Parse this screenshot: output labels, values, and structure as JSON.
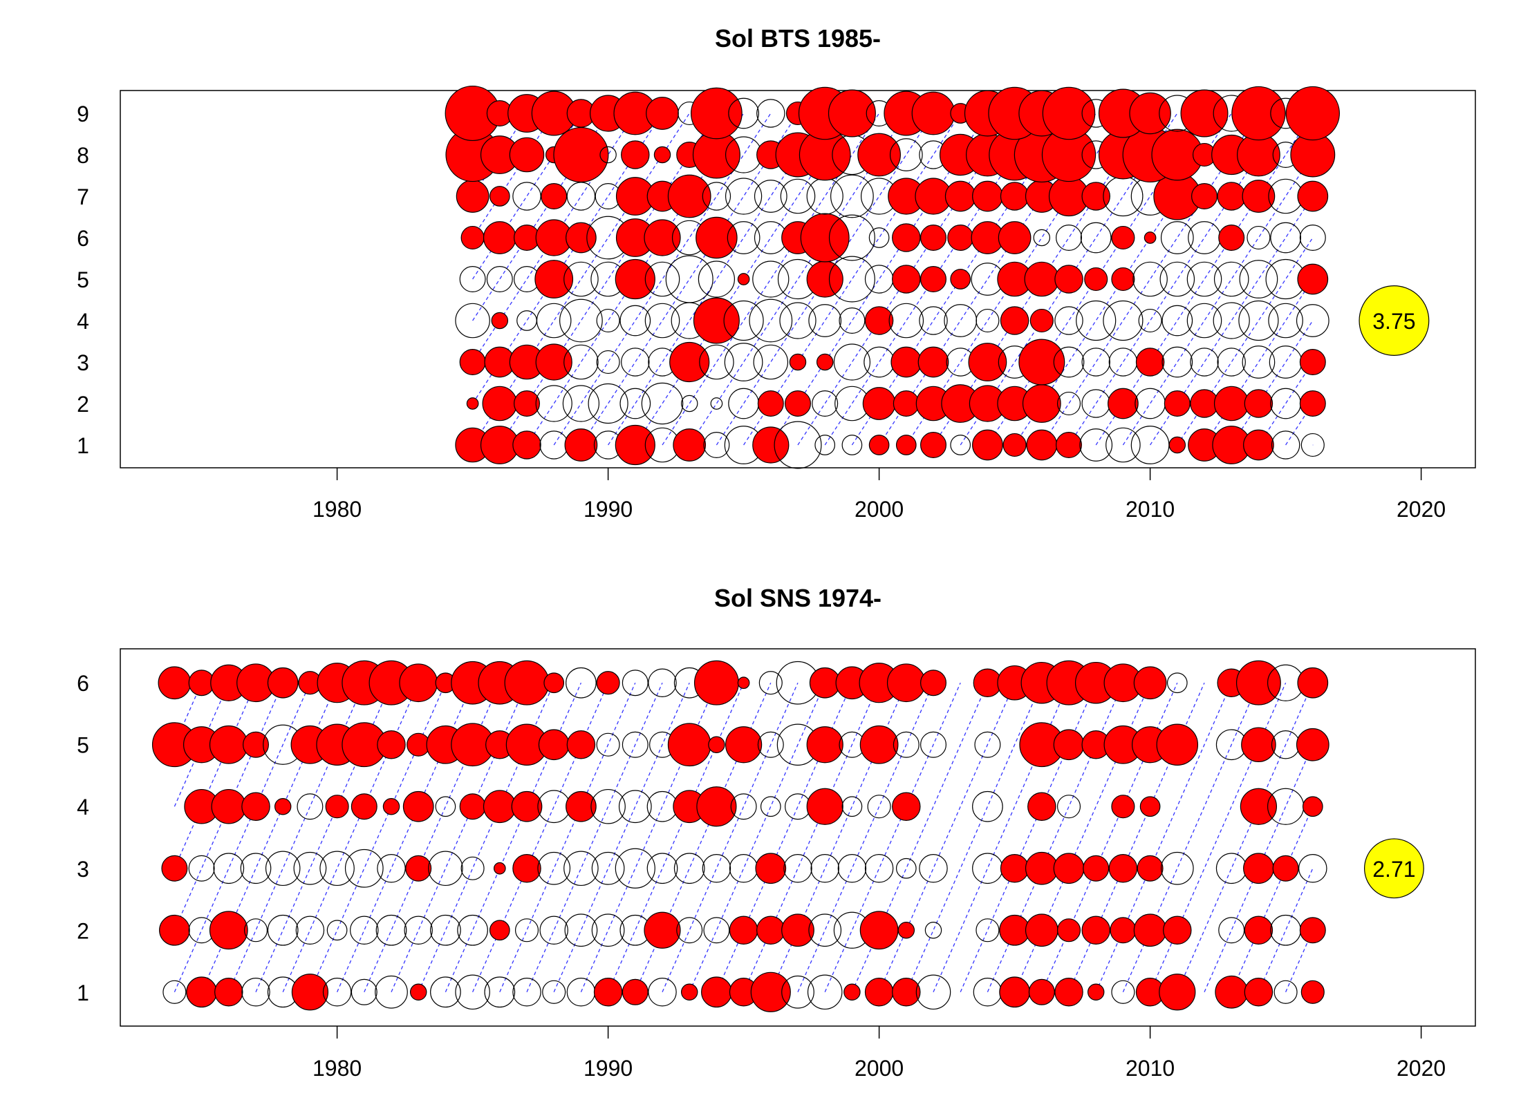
{
  "chart_data": [
    {
      "type": "scatter",
      "title": "Sol BTS 1985-",
      "xlabel": "",
      "ylabel": "",
      "xlim": [
        1972,
        2022
      ],
      "xticks": [
        1980,
        1990,
        2000,
        2010,
        2020
      ],
      "ages": [
        1,
        2,
        3,
        4,
        5,
        6,
        7,
        8,
        9
      ],
      "years": [
        1985,
        1986,
        1987,
        1988,
        1989,
        1990,
        1991,
        1992,
        1993,
        1994,
        1995,
        1996,
        1997,
        1998,
        1999,
        2000,
        2001,
        2002,
        2003,
        2004,
        2005,
        2006,
        2007,
        2008,
        2009,
        2010,
        2011,
        2012,
        2013,
        2014,
        2015,
        2016
      ],
      "grid": false,
      "positive_color": "#ff0000",
      "negative_color": "none",
      "cohort_line_color": "#3333ff",
      "max_marker": {
        "label": "3.75",
        "value": 3.75,
        "x": 2019,
        "y": 4,
        "color": "#ffff00"
      },
      "residuals": [
        [
          0.9,
          1.1,
          0.6,
          -0.6,
          0.8,
          -0.6,
          1.2,
          -0.9,
          0.8,
          -0.5,
          -1.1,
          1.0,
          -1.7,
          -0.3,
          -0.3,
          0.3,
          0.3,
          0.5,
          -0.3,
          0.7,
          0.4,
          0.7,
          0.5,
          -0.8,
          -0.9,
          -1.1,
          0.2,
          0.8,
          1.1,
          0.7,
          -0.6,
          -0.4
        ],
        [
          0.1,
          0.9,
          0.5,
          -1.0,
          -1.0,
          -1.2,
          -0.7,
          -1.3,
          -0.2,
          -0.1,
          -0.7,
          0.5,
          0.5,
          -0.5,
          -0.9,
          0.8,
          0.5,
          0.9,
          1.1,
          1.0,
          0.9,
          1.1,
          -0.4,
          -0.6,
          0.7,
          -0.7,
          0.5,
          0.6,
          0.9,
          0.6,
          -0.7,
          0.5
        ],
        [
          0.5,
          0.7,
          0.9,
          1.0,
          -0.9,
          -0.4,
          -0.6,
          -0.6,
          1.2,
          -0.9,
          -1.1,
          -0.9,
          0.2,
          0.2,
          -1.0,
          -0.7,
          0.7,
          0.7,
          -0.6,
          1.1,
          -0.8,
          1.6,
          -0.7,
          -0.6,
          -0.6,
          0.6,
          -0.7,
          -0.6,
          -0.6,
          -0.8,
          -0.8,
          0.5
        ],
        [
          -0.9,
          0.2,
          -0.3,
          -0.9,
          -1.4,
          -0.4,
          -0.7,
          -0.9,
          -1.0,
          1.6,
          -1.2,
          -1.4,
          -1.0,
          -0.8,
          -0.5,
          0.6,
          -0.9,
          -0.6,
          -0.8,
          -0.4,
          0.6,
          0.4,
          -0.6,
          -1.2,
          -1.2,
          -0.4,
          -0.7,
          -0.9,
          -1.0,
          -1.2,
          -0.9,
          -0.8
        ],
        [
          -0.5,
          -0.5,
          -0.5,
          1.1,
          -0.9,
          -0.9,
          1.2,
          -0.9,
          -1.7,
          -1.0,
          0.1,
          -1.0,
          -1.2,
          1.0,
          -1.6,
          -0.6,
          0.6,
          0.5,
          0.3,
          -0.8,
          0.9,
          0.9,
          0.6,
          0.4,
          0.4,
          -0.9,
          -0.9,
          -0.9,
          -0.9,
          -1.1,
          -1.2,
          0.7
        ],
        [
          0.4,
          0.8,
          0.5,
          1.0,
          0.7,
          -1.4,
          1.1,
          1.0,
          -0.9,
          1.3,
          -0.8,
          -0.8,
          0.8,
          1.8,
          -1.6,
          -0.3,
          0.6,
          0.5,
          0.5,
          0.8,
          0.8,
          -0.2,
          -0.5,
          -0.7,
          0.4,
          0.1,
          -0.8,
          -0.8,
          0.5,
          -0.4,
          -0.7,
          -0.5
        ],
        [
          0.8,
          0.3,
          -0.6,
          0.5,
          -0.6,
          -0.5,
          1.1,
          0.7,
          1.4,
          -0.6,
          -1.0,
          -0.8,
          -0.9,
          -1.0,
          -1.4,
          -1.0,
          1.0,
          1.0,
          0.7,
          0.7,
          0.6,
          0.8,
          1.2,
          0.6,
          -1.2,
          -1.1,
          1.7,
          0.5,
          0.6,
          0.8,
          -0.9,
          0.7
        ],
        [
          2.2,
          1.1,
          0.9,
          0.2,
          2.3,
          -0.2,
          0.6,
          0.2,
          0.5,
          1.7,
          -1.0,
          0.6,
          1.5,
          2.0,
          -1.2,
          1.4,
          -0.8,
          -0.6,
          1.3,
          1.4,
          2.0,
          2.3,
          2.2,
          -0.6,
          1.8,
          2.3,
          2.0,
          0.4,
          1.2,
          1.4,
          -0.5,
          1.5
        ],
        [
          2.3,
          0.5,
          1.1,
          1.5,
          0.6,
          1.0,
          1.4,
          0.8,
          -0.4,
          2.0,
          -0.7,
          -0.6,
          0.4,
          2.1,
          1.7,
          -0.5,
          1.5,
          1.4,
          0.3,
          1.6,
          2.1,
          1.6,
          2.1,
          -0.6,
          1.8,
          1.3,
          -1.0,
          1.7,
          -1.0,
          2.2,
          -0.7,
          2.2
        ]
      ]
    },
    {
      "type": "scatter",
      "title": "Sol SNS 1974-",
      "xlabel": "",
      "ylabel": "",
      "xlim": [
        1972,
        2022
      ],
      "xticks": [
        1980,
        1990,
        2000,
        2010,
        2020
      ],
      "ages": [
        1,
        2,
        3,
        4,
        5,
        6
      ],
      "years": [
        1974,
        1975,
        1976,
        1977,
        1978,
        1979,
        1980,
        1981,
        1982,
        1983,
        1984,
        1985,
        1986,
        1987,
        1988,
        1989,
        1990,
        1991,
        1992,
        1993,
        1994,
        1995,
        1996,
        1997,
        1998,
        1999,
        2000,
        2001,
        2002,
        2003,
        2004,
        2005,
        2006,
        2007,
        2008,
        2009,
        2010,
        2011,
        2012,
        2013,
        2014,
        2015,
        2016
      ],
      "grid": false,
      "positive_color": "#ff0000",
      "negative_color": "none",
      "cohort_line_color": "#3333ff",
      "max_marker": {
        "label": "2.71",
        "value": 2.71,
        "x": 2019,
        "y": 3,
        "color": "#ffff00"
      },
      "residuals": [
        [
          -0.4,
          0.7,
          0.6,
          -0.6,
          -0.7,
          1.0,
          -0.6,
          -0.5,
          -0.8,
          0.2,
          -0.7,
          -0.9,
          -0.7,
          -0.6,
          -0.4,
          -0.6,
          0.6,
          0.5,
          -0.6,
          0.2,
          0.7,
          0.6,
          1.2,
          -0.8,
          -0.9,
          0.2,
          0.6,
          0.6,
          -0.9,
          null,
          -0.6,
          0.7,
          0.5,
          0.6,
          0.2,
          -0.4,
          0.6,
          1.0,
          null,
          0.8,
          0.6,
          -0.4,
          0.4
        ],
        [
          0.7,
          -0.5,
          1.1,
          -0.4,
          -0.7,
          -0.6,
          -0.3,
          -0.6,
          -0.7,
          -0.6,
          -0.7,
          -0.7,
          0.3,
          -0.4,
          -0.6,
          -0.8,
          -0.8,
          -0.7,
          1.0,
          -0.5,
          -0.5,
          0.6,
          0.6,
          0.8,
          -0.8,
          -1.0,
          1.1,
          0.2,
          -0.2,
          null,
          -0.4,
          0.7,
          0.8,
          0.4,
          0.6,
          0.5,
          0.8,
          0.6,
          null,
          -0.5,
          0.6,
          -0.7,
          0.5
        ],
        [
          0.5,
          -0.5,
          -0.7,
          -0.7,
          -0.9,
          -0.8,
          -0.9,
          -1.1,
          -0.6,
          0.5,
          -0.9,
          -0.4,
          0.1,
          0.6,
          -0.8,
          -0.9,
          -0.8,
          -1.2,
          -0.7,
          -0.7,
          -0.6,
          -0.6,
          0.7,
          -0.6,
          -0.6,
          -0.6,
          -0.6,
          -0.3,
          -0.6,
          null,
          -0.7,
          0.6,
          0.8,
          0.7,
          0.5,
          0.6,
          0.5,
          -0.8,
          null,
          -0.7,
          0.7,
          0.5,
          -0.6
        ],
        [
          null,
          0.9,
          0.9,
          0.6,
          0.2,
          -0.5,
          0.4,
          0.5,
          0.2,
          0.7,
          -0.3,
          0.5,
          0.8,
          0.7,
          -0.8,
          0.7,
          -0.9,
          -0.8,
          -0.7,
          0.8,
          1.2,
          -0.5,
          -0.3,
          -0.5,
          1.0,
          -0.3,
          -0.4,
          0.6,
          null,
          null,
          -0.7,
          null,
          0.6,
          -0.4,
          null,
          0.4,
          0.3,
          null,
          null,
          null,
          1.0,
          -1.0,
          0.3
        ],
        [
          1.5,
          1.0,
          1.1,
          0.5,
          -1.2,
          1.1,
          1.3,
          1.5,
          0.6,
          0.4,
          1.1,
          1.4,
          0.6,
          1.3,
          0.7,
          0.6,
          -0.4,
          -0.5,
          -0.5,
          1.4,
          0.2,
          1.0,
          -0.5,
          -1.3,
          1.0,
          -0.5,
          1.1,
          -0.5,
          -0.5,
          null,
          -0.5,
          null,
          1.5,
          0.7,
          0.6,
          1.1,
          1.0,
          1.3,
          null,
          -0.7,
          0.9,
          -0.6,
          0.8
        ],
        [
          0.8,
          0.5,
          1.0,
          1.1,
          0.7,
          0.4,
          1.2,
          1.5,
          1.5,
          1.1,
          0.3,
          1.4,
          1.4,
          1.5,
          0.3,
          -0.7,
          0.4,
          -0.5,
          -0.6,
          -0.7,
          1.5,
          0.1,
          -0.4,
          -1.4,
          0.7,
          0.8,
          1.2,
          1.1,
          0.5,
          null,
          0.6,
          0.9,
          1.3,
          1.5,
          1.3,
          1.1,
          0.8,
          -0.3,
          null,
          0.6,
          1.5,
          -1.0,
          0.7
        ]
      ]
    }
  ]
}
